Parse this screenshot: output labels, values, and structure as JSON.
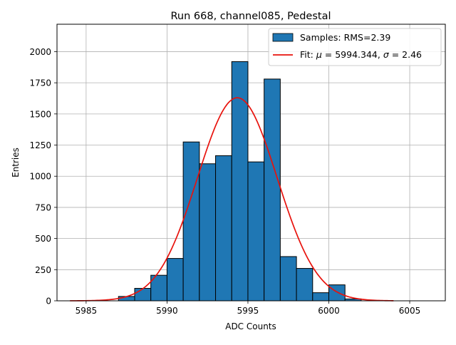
{
  "chart_data": {
    "type": "histogram",
    "title": "Run 668, channel085, Pedestal",
    "xlabel": "ADC Counts",
    "ylabel": "Entries",
    "xlim": [
      5983.2,
      6007.2
    ],
    "ylim": [
      0,
      2220
    ],
    "xticks": [
      5985,
      5990,
      5995,
      6000,
      6005
    ],
    "xtick_labels": [
      "5985",
      "5990",
      "5995",
      "6000",
      "6005"
    ],
    "yticks": [
      0,
      250,
      500,
      750,
      1000,
      1250,
      1500,
      1750,
      2000
    ],
    "ytick_labels": [
      "0",
      "250",
      "500",
      "750",
      "1000",
      "1250",
      "1500",
      "1750",
      "2000"
    ],
    "grid": true,
    "legend_position": "top-right",
    "bars": {
      "name": "Samples: RMS=2.39",
      "color": "#1f77b4",
      "edge_color": "#000000",
      "bin_edges": [
        5984,
        5985,
        5986,
        5987,
        5988,
        5989,
        5990,
        5991,
        5992,
        5993,
        5994,
        5995,
        5996,
        5997,
        5998,
        5999,
        6000,
        6001,
        6002,
        6003,
        6004,
        6005,
        6006
      ],
      "values": [
        0,
        0,
        0,
        35,
        100,
        205,
        340,
        1275,
        1100,
        1165,
        1920,
        1115,
        1780,
        355,
        260,
        65,
        128,
        15,
        0,
        0,
        0,
        0
      ]
    },
    "fit": {
      "name_prefix": "Fit: ",
      "mu_symbol": "μ",
      "mu_text": " = 5994.344, ",
      "sigma_symbol": "σ",
      "sigma_text": " = 2.46",
      "mu": 5994.344,
      "sigma": 2.46,
      "amplitude": 1630,
      "x_range": [
        5984,
        6004
      ],
      "color": "#e8120c"
    }
  }
}
